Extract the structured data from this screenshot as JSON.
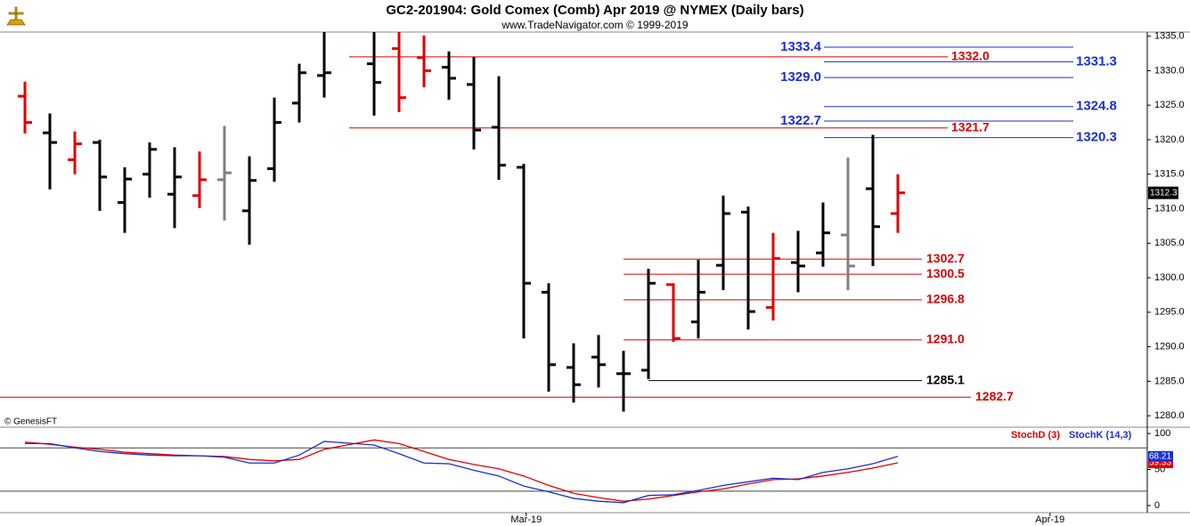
{
  "chart_data": [
    {
      "type": "ohlc",
      "title": "GC2-201904:  Gold Comex (Comb) Apr 2019 @ NYMEX  (Daily bars)",
      "subtitle": "www.TradeNavigator.com © 1999-2019",
      "credit": "© GenesisFT",
      "x": [
        0,
        1,
        2,
        3,
        4,
        5,
        6,
        7,
        8,
        9,
        10,
        11,
        12,
        14,
        15,
        16,
        17,
        18,
        19,
        20,
        21,
        22,
        23,
        24,
        25,
        26,
        27,
        28,
        29,
        30,
        31,
        32,
        33,
        34,
        35
      ],
      "open": [
        1326.3,
        1321.0,
        1317.1,
        1319.6,
        1310.9,
        1315.0,
        1312.1,
        1311.9,
        1314.2,
        1309.7,
        1315.8,
        1325.3,
        1329.3,
        1331.0,
        1333.2,
        1331.9,
        1330.5,
        1328.0,
        1321.8,
        1316.0,
        1297.9,
        1287.0,
        1288.5,
        1286.1,
        1286.6,
        1299.0,
        1293.6,
        1301.8,
        1309.5,
        1295.7,
        1302.2,
        1303.6,
        1306.2,
        1312.9,
        1309.3
      ],
      "high": [
        1328.4,
        1323.8,
        1321.2,
        1320.0,
        1316.0,
        1319.6,
        1318.9,
        1318.3,
        1322.0,
        1317.6,
        1326.1,
        1331.0,
        1335.6,
        1335.6,
        1335.6,
        1335.1,
        1332.8,
        1332.0,
        1329.2,
        1316.5,
        1299.2,
        1290.5,
        1291.7,
        1289.4,
        1301.3,
        1299.2,
        1302.6,
        1311.9,
        1310.3,
        1306.5,
        1306.8,
        1310.9,
        1317.4,
        1320.7,
        1315.0
      ],
      "low": [
        1320.9,
        1312.8,
        1315.0,
        1309.7,
        1306.5,
        1311.6,
        1307.2,
        1310.1,
        1308.3,
        1304.8,
        1313.9,
        1322.5,
        1326.1,
        1323.5,
        1324.0,
        1327.6,
        1325.8,
        1318.6,
        1314.2,
        1291.2,
        1283.5,
        1281.9,
        1284.1,
        1280.6,
        1285.3,
        1290.7,
        1291.2,
        1298.2,
        1292.5,
        1293.8,
        1297.9,
        1301.6,
        1298.2,
        1301.7,
        1306.5
      ],
      "close": [
        1322.5,
        1319.6,
        1319.4,
        1314.6,
        1314.3,
        1318.6,
        1314.6,
        1314.2,
        1315.2,
        1314.1,
        1322.5,
        1329.7,
        1329.7,
        1328.3,
        1326.1,
        1330.0,
        1328.9,
        1321.4,
        1316.3,
        1299.2,
        1287.4,
        1284.5,
        1287.4,
        1286.1,
        1299.2,
        1291.2,
        1297.9,
        1309.3,
        1295.1,
        1302.8,
        1301.7,
        1306.5,
        1301.7,
        1307.4,
        1312.3
      ],
      "colors": [
        "#e00000",
        "#000000",
        "#e00000",
        "#000000",
        "#000000",
        "#000000",
        "#000000",
        "#e00000",
        "#808080",
        "#000000",
        "#000000",
        "#000000",
        "#000000",
        "#000000",
        "#e00000",
        "#e00000",
        "#000000",
        "#000000",
        "#000000",
        "#000000",
        "#000000",
        "#000000",
        "#000000",
        "#000000",
        "#000000",
        "#e00000",
        "#000000",
        "#000000",
        "#000000",
        "#e00000",
        "#000000",
        "#000000",
        "#808080",
        "#000000",
        "#e00000"
      ],
      "levels": {
        "values": [
          1333.4,
          1332,
          1331.3,
          1329,
          1324.8,
          1322.7,
          1321.7,
          1320.3,
          1302.7,
          1300.5,
          1296.8,
          1291,
          1285.1,
          1282.7
        ],
        "value_labels": [
          "1333.4",
          "1332.0",
          "1331.3",
          "1329.0",
          "1324.8",
          "1322.7",
          "1321.7",
          "1320.3",
          "1302.7",
          "1300.5",
          "1296.8",
          "1291.0",
          "1285.1",
          "1282.7"
        ],
        "colors": [
          "#1a2fd6",
          "#d80000",
          "#1a2fd6",
          "#1a2fd6",
          "#1a2fd6",
          "#1a2fd6",
          "#d80000",
          "#1a2fd6",
          "#d80000",
          "#d80000",
          "#d80000",
          "#d80000",
          "#000000",
          "#d80000"
        ]
      },
      "xlim": [
        -1,
        45
      ],
      "ylim": [
        1278.6,
        1335.6
      ],
      "yticks": [
        {
          "value": 1280,
          "label": "1280.0"
        },
        {
          "value": 1285,
          "label": "1285.0"
        },
        {
          "value": 1290,
          "label": "1290.0"
        },
        {
          "value": 1295,
          "label": "1295.0"
        },
        {
          "value": 1300,
          "label": "1300.0"
        },
        {
          "value": 1305,
          "label": "1305.0"
        },
        {
          "value": 1310,
          "label": "1310.0"
        },
        {
          "value": 1315,
          "label": "1315.0"
        },
        {
          "value": 1320,
          "label": "1320.0"
        },
        {
          "value": 1325,
          "label": "1325.0"
        },
        {
          "value": 1330,
          "label": "1330.0"
        },
        {
          "value": 1335,
          "label": "1335.0"
        }
      ]
    },
    {
      "type": "line",
      "x": [
        0,
        1,
        2,
        3,
        4,
        5,
        6,
        7,
        8,
        9,
        10,
        11,
        12,
        14,
        15,
        16,
        17,
        18,
        19,
        20,
        21,
        22,
        23,
        24,
        25,
        26,
        27,
        28,
        29,
        30,
        31,
        32,
        33,
        34,
        35
      ],
      "series": [
        {
          "name": "StochD (3)",
          "color": "#e00000",
          "values": [
            88,
            85,
            81,
            78,
            74,
            72,
            70,
            69,
            68,
            64,
            62,
            64,
            78,
            91,
            86,
            75,
            64,
            57,
            51,
            41,
            28,
            17,
            11,
            6,
            9,
            14,
            19,
            23,
            30,
            36,
            37,
            41,
            46,
            52,
            59.33
          ]
        },
        {
          "name": "StochK (14,3)",
          "color": "#1a2fd6",
          "values": [
            86,
            86,
            80,
            75,
            72,
            70,
            69,
            69,
            67,
            59,
            59,
            70,
            89,
            84,
            72,
            59,
            58,
            49,
            41,
            27,
            19,
            10,
            6,
            4,
            14,
            15,
            21,
            28,
            33,
            38,
            36,
            46,
            51,
            58,
            68.21
          ]
        }
      ],
      "levels": [
        20,
        80
      ],
      "xlim": [
        -1,
        45
      ],
      "ylim": [
        -8.6,
        106.2
      ],
      "yticks": [
        0,
        50,
        100
      ],
      "xticks": [
        {
          "value": 20.1,
          "label": "Mar-19"
        },
        {
          "value": 41.1,
          "label": "Apr-19"
        }
      ]
    }
  ]
}
